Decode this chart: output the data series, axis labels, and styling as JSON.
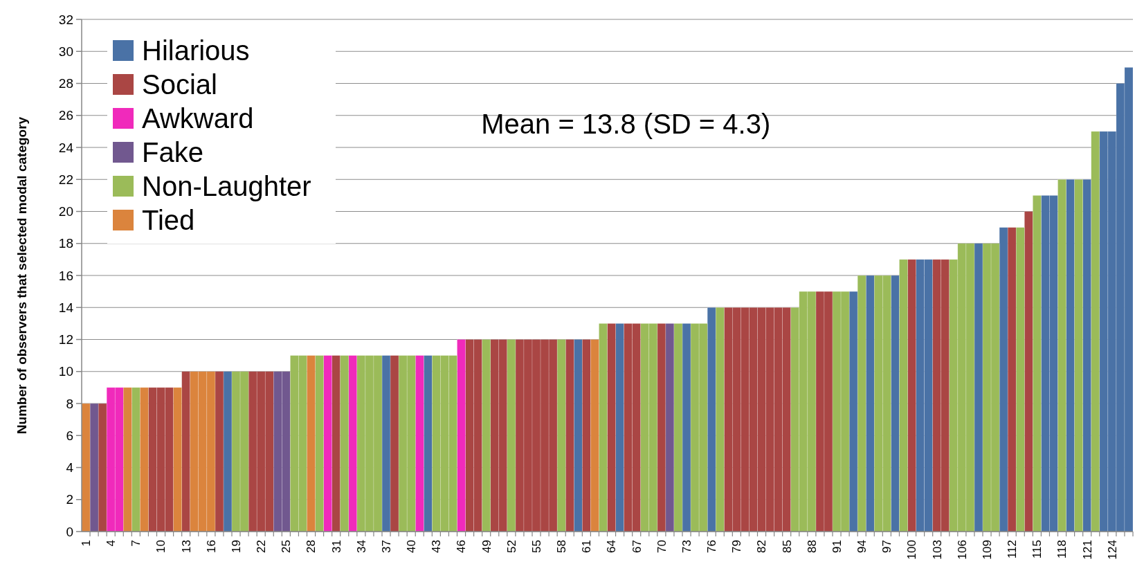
{
  "chart_data": {
    "type": "bar",
    "ylabel": "Number of observers that selected modal category",
    "annotations": [
      "Mean = 13.8 (SD = 4.3)"
    ],
    "xlim": [
      0.5,
      126.5
    ],
    "xticks": [
      1,
      4,
      7,
      10,
      13,
      16,
      19,
      22,
      25,
      28,
      31,
      34,
      37,
      40,
      43,
      46,
      49,
      52,
      55,
      58,
      61,
      64,
      67,
      70,
      73,
      76,
      79,
      82,
      85,
      88,
      91,
      94,
      97,
      100,
      103,
      106,
      109,
      112,
      115,
      118,
      121,
      124
    ],
    "ylim": [
      0,
      32
    ],
    "yticks": [
      0,
      2,
      4,
      6,
      8,
      10,
      12,
      14,
      16,
      18,
      20,
      22,
      24,
      26,
      28,
      30,
      32
    ],
    "grid": "y",
    "legend": "top left",
    "series": [
      {
        "name": "Hilarious",
        "color": "#4a72a6",
        "x": [
          18,
          37,
          42,
          60,
          65,
          73,
          76,
          93,
          95,
          98,
          101,
          102,
          108,
          111,
          116,
          117,
          119,
          121,
          123,
          124,
          125,
          126
        ],
        "values": [
          10,
          11,
          11,
          12,
          13,
          13,
          14,
          15,
          16,
          16,
          17,
          17,
          18,
          19,
          21,
          21,
          22,
          22,
          25,
          25,
          28,
          29
        ]
      },
      {
        "name": "Social",
        "color": "#aa4644",
        "x": [
          3,
          9,
          10,
          11,
          13,
          17,
          21,
          22,
          23,
          31,
          38,
          47,
          48,
          50,
          51,
          53,
          54,
          55,
          56,
          57,
          59,
          61,
          64,
          66,
          67,
          70,
          78,
          79,
          80,
          81,
          82,
          83,
          84,
          85,
          89,
          90,
          100,
          103,
          104,
          112,
          114
        ],
        "values": [
          8,
          9,
          9,
          9,
          10,
          10,
          10,
          10,
          10,
          11,
          11,
          12,
          12,
          12,
          12,
          12,
          12,
          12,
          12,
          12,
          12,
          12,
          13,
          13,
          13,
          13,
          14,
          14,
          14,
          14,
          14,
          14,
          14,
          14,
          15,
          15,
          17,
          17,
          17,
          19,
          20
        ]
      },
      {
        "name": "Awkward",
        "color": "#f02abb",
        "x": [
          4,
          5,
          30,
          33,
          41,
          46
        ],
        "values": [
          9,
          9,
          11,
          11,
          11,
          12
        ]
      },
      {
        "name": "Fake",
        "color": "#71588f",
        "x": [
          2,
          24,
          25,
          71
        ],
        "values": [
          8,
          10,
          10,
          13
        ]
      },
      {
        "name": "Non-Laughter",
        "color": "#9bbb59",
        "x": [
          7,
          19,
          20,
          26,
          27,
          29,
          32,
          34,
          35,
          36,
          39,
          40,
          43,
          44,
          45,
          49,
          52,
          58,
          63,
          68,
          69,
          72,
          74,
          75,
          77,
          86,
          87,
          88,
          91,
          92,
          94,
          96,
          97,
          99,
          105,
          106,
          107,
          109,
          110,
          113,
          115,
          118,
          120,
          122
        ],
        "values": [
          9,
          10,
          10,
          11,
          11,
          11,
          11,
          11,
          11,
          11,
          11,
          11,
          11,
          11,
          11,
          12,
          12,
          12,
          13,
          13,
          13,
          13,
          13,
          13,
          14,
          14,
          15,
          15,
          15,
          15,
          16,
          16,
          16,
          17,
          17,
          18,
          18,
          18,
          18,
          19,
          21,
          22,
          22,
          25
        ]
      },
      {
        "name": "Tied",
        "color": "#db843d",
        "x": [
          1,
          6,
          8,
          12,
          14,
          15,
          16,
          28,
          62
        ],
        "values": [
          8,
          9,
          9,
          9,
          10,
          10,
          10,
          11,
          12
        ]
      }
    ]
  }
}
